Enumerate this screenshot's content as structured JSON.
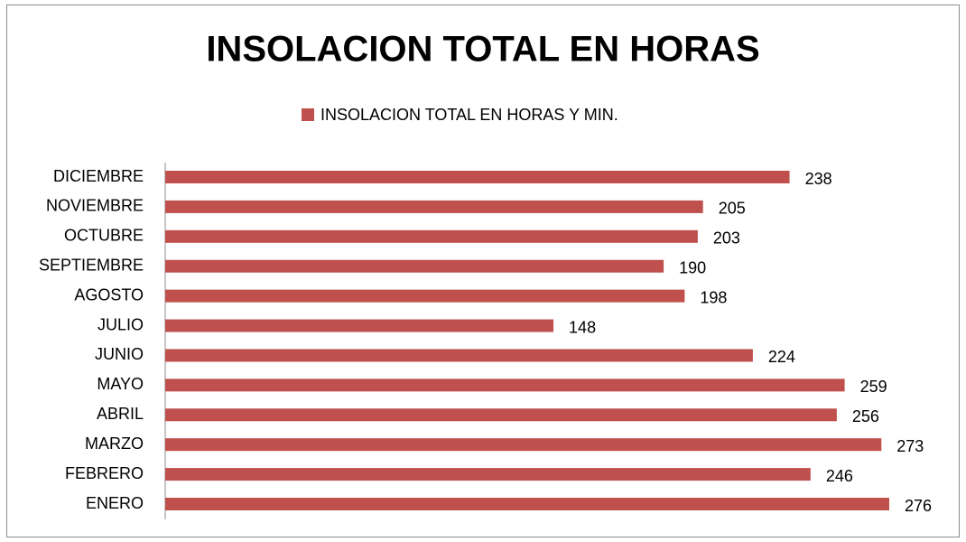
{
  "chart_data": {
    "type": "bar",
    "orientation": "horizontal",
    "title": "INSOLACION TOTAL EN HORAS",
    "categories": [
      "ENERO",
      "FEBRERO",
      "MARZO",
      "ABRIL",
      "MAYO",
      "JUNIO",
      "JULIO",
      "AGOSTO",
      "SEPTIEMBRE",
      "OCTUBRE",
      "NOVIEMBRE",
      "DICIEMBRE"
    ],
    "series": [
      {
        "name": "INSOLACION TOTAL EN HORAS Y MIN.",
        "color": "#c0504d",
        "values": [
          276,
          246,
          273,
          256,
          259,
          224,
          148,
          198,
          190,
          203,
          205,
          238
        ]
      }
    ],
    "legend": "top"
  }
}
